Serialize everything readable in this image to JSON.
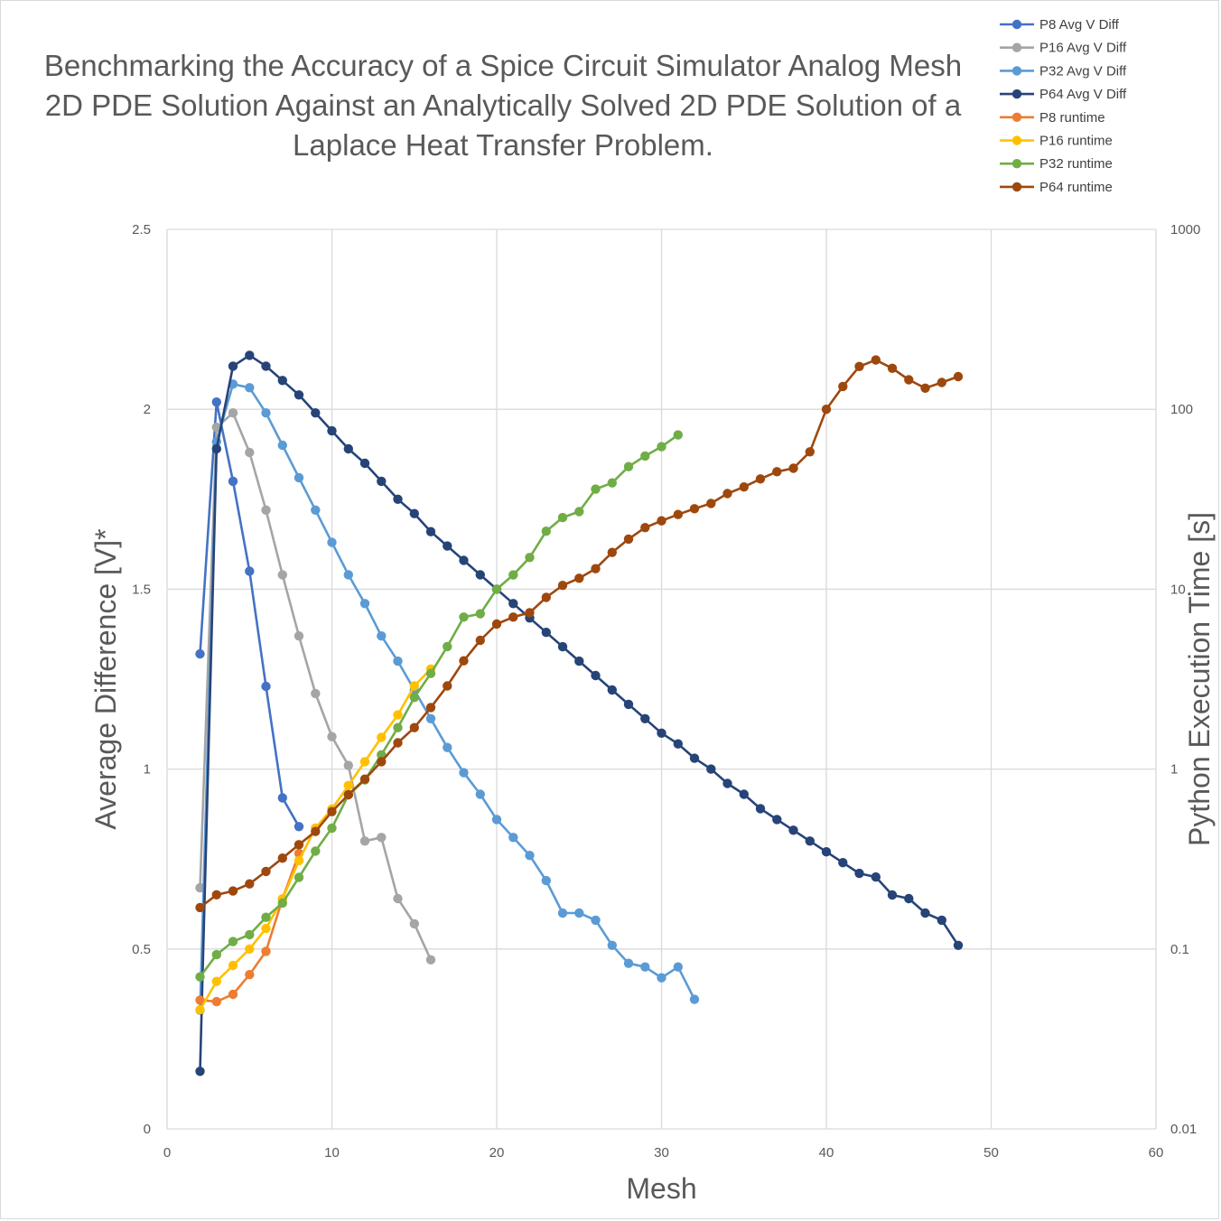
{
  "chart_data": {
    "type": "line",
    "title": "Benchmarking the Accuracy of a Spice Circuit Simulator Analog Mesh 2D PDE Solution Against an Analytically Solved 2D PDE Solution of a Laplace Heat Transfer Problem.",
    "title_lines": [
      "Benchmarking the Accuracy of a Spice Circuit Simulator Analog Mesh",
      "2D PDE Solution Against an Analytically Solved 2D PDE Solution of a",
      "Laplace Heat Transfer Problem."
    ],
    "xlabel": "Mesh",
    "ylabel": "Average Difference [V]*",
    "y2label": "Python Execution Time [s]",
    "xlim": [
      0,
      60
    ],
    "ylim": [
      0,
      2.5
    ],
    "y2lim": [
      0.01,
      1000
    ],
    "y2_scale": "log",
    "x_ticks": [
      "0",
      "10",
      "20",
      "30",
      "40",
      "50",
      "60"
    ],
    "y_ticks": [
      "0",
      "0.5",
      "1",
      "1.5",
      "2",
      "2.5"
    ],
    "y2_ticks": [
      "0.01",
      "0.1",
      "1",
      "10",
      "100",
      "1000"
    ],
    "grid": true,
    "legend_position": "top-right",
    "series": [
      {
        "name": "P8 Avg V Diff",
        "axis": "left",
        "color": "#4472c4",
        "x": [
          2,
          3,
          4,
          5,
          6,
          7,
          8
        ],
        "y": [
          1.32,
          2.02,
          1.8,
          1.55,
          1.23,
          0.92,
          0.84
        ]
      },
      {
        "name": "P16 Avg V Diff",
        "axis": "left",
        "color": "#a5a5a5",
        "x": [
          2,
          3,
          4,
          5,
          6,
          7,
          8,
          9,
          10,
          11,
          12,
          13,
          14,
          15,
          16
        ],
        "y": [
          0.67,
          1.95,
          1.99,
          1.88,
          1.72,
          1.54,
          1.37,
          1.21,
          1.09,
          1.01,
          0.8,
          0.81,
          0.64,
          0.57,
          0.47
        ]
      },
      {
        "name": "P32 Avg V Diff",
        "axis": "left",
        "color": "#5b9bd5",
        "x": [
          2,
          3,
          4,
          5,
          6,
          7,
          8,
          9,
          10,
          11,
          12,
          13,
          14,
          15,
          16,
          17,
          18,
          19,
          20,
          21,
          22,
          23,
          24,
          25,
          26,
          27,
          28,
          29,
          30,
          31,
          32
        ],
        "y": [
          0.33,
          1.91,
          2.07,
          2.06,
          1.99,
          1.9,
          1.81,
          1.72,
          1.63,
          1.54,
          1.46,
          1.37,
          1.3,
          1.22,
          1.14,
          1.06,
          0.99,
          0.93,
          0.86,
          0.81,
          0.76,
          0.69,
          0.6,
          0.6,
          0.58,
          0.51,
          0.46,
          0.45,
          0.42,
          0.45,
          0.36
        ]
      },
      {
        "name": "P64 Avg V Diff",
        "axis": "left",
        "color": "#264478",
        "x": [
          2,
          3,
          4,
          5,
          6,
          7,
          8,
          9,
          10,
          11,
          12,
          13,
          14,
          15,
          16,
          17,
          18,
          19,
          20,
          21,
          22,
          23,
          24,
          25,
          26,
          27,
          28,
          29,
          30,
          31,
          32,
          33,
          34,
          35,
          36,
          37,
          38,
          39,
          40,
          41,
          42,
          43,
          44,
          45,
          46,
          47,
          48
        ],
        "y": [
          0.16,
          1.89,
          2.12,
          2.15,
          2.12,
          2.08,
          2.04,
          1.99,
          1.94,
          1.89,
          1.85,
          1.8,
          1.75,
          1.71,
          1.66,
          1.62,
          1.58,
          1.54,
          1.5,
          1.46,
          1.42,
          1.38,
          1.34,
          1.3,
          1.26,
          1.22,
          1.18,
          1.14,
          1.1,
          1.07,
          1.03,
          1.0,
          0.96,
          0.93,
          0.89,
          0.86,
          0.83,
          0.8,
          0.77,
          0.74,
          0.71,
          0.7,
          0.65,
          0.64,
          0.6,
          0.58,
          0.51
        ]
      },
      {
        "name": "P8 runtime",
        "axis": "right",
        "color": "#ed7d31",
        "x": [
          2,
          3,
          4,
          5,
          6,
          7,
          8
        ],
        "y": [
          0.052,
          0.051,
          0.056,
          0.072,
          0.097,
          0.19,
          0.34
        ]
      },
      {
        "name": "P16 runtime",
        "axis": "right",
        "color": "#ffc000",
        "x": [
          2,
          3,
          4,
          5,
          6,
          7,
          8,
          9,
          10,
          11,
          12,
          13,
          14,
          15,
          16
        ],
        "y": [
          0.046,
          0.066,
          0.081,
          0.1,
          0.13,
          0.19,
          0.31,
          0.47,
          0.6,
          0.81,
          1.1,
          1.5,
          2.0,
          2.9,
          3.6
        ]
      },
      {
        "name": "P32 runtime",
        "axis": "right",
        "color": "#70ad47",
        "x": [
          2,
          3,
          4,
          5,
          6,
          7,
          8,
          9,
          10,
          11,
          12,
          13,
          14,
          15,
          16,
          17,
          18,
          19,
          20,
          21,
          22,
          23,
          24,
          25,
          26,
          27,
          28,
          29,
          30,
          31
        ],
        "y": [
          0.07,
          0.093,
          0.11,
          0.12,
          0.15,
          0.18,
          0.25,
          0.35,
          0.47,
          0.72,
          0.87,
          1.2,
          1.7,
          2.5,
          3.4,
          4.8,
          7.0,
          7.3,
          10.0,
          12.0,
          15.0,
          21.0,
          25.0,
          27.0,
          36.0,
          39.0,
          48.0,
          55.0,
          62.0,
          72.0
        ]
      },
      {
        "name": "P64 runtime",
        "axis": "right",
        "color": "#9e480e",
        "x": [
          2,
          3,
          4,
          5,
          6,
          7,
          8,
          9,
          10,
          11,
          12,
          13,
          14,
          15,
          16,
          17,
          18,
          19,
          20,
          21,
          22,
          23,
          24,
          25,
          26,
          27,
          28,
          29,
          30,
          31,
          32,
          33,
          34,
          35,
          36,
          37,
          38,
          39,
          40,
          41,
          42,
          43,
          44,
          45,
          46,
          47,
          48
        ],
        "y": [
          0.17,
          0.2,
          0.21,
          0.23,
          0.27,
          0.32,
          0.38,
          0.45,
          0.58,
          0.72,
          0.88,
          1.1,
          1.4,
          1.7,
          2.2,
          2.9,
          4.0,
          5.2,
          6.4,
          7.0,
          7.4,
          9.0,
          10.5,
          11.5,
          13.0,
          16.0,
          19.0,
          22.0,
          24.0,
          26.0,
          28.0,
          30.0,
          34.0,
          37.0,
          41.0,
          45.0,
          47.0,
          58.0,
          100,
          134,
          173,
          188,
          169,
          146,
          131,
          141,
          152
        ]
      }
    ]
  }
}
